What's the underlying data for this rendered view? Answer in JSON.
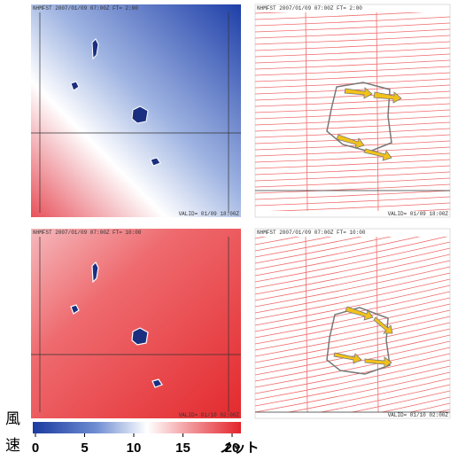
{
  "panels": [
    {
      "header": "NHMFST 2007/01/09 07:00Z FT= 2:00",
      "footer": "VALID= 01/09 18:00Z"
    },
    {
      "header": "NHMFST 2007/01/09 07:00Z FT= 2:00",
      "footer": "VALID= 01/09 18:00Z"
    },
    {
      "header": "NHMFST 2007/01/09 07:00Z FT= 10:00",
      "footer": "VALID= 01/10 02:00Z"
    },
    {
      "header": "NHMFST 2007/01/09 07:00Z FT= 10:00",
      "footer": "VALID= 01/10 02:00Z"
    }
  ],
  "colorbar": {
    "label": "風速",
    "unit": "ノット",
    "lim": [
      0,
      20
    ],
    "ticks": [
      0,
      5,
      10,
      15,
      20
    ]
  }
}
